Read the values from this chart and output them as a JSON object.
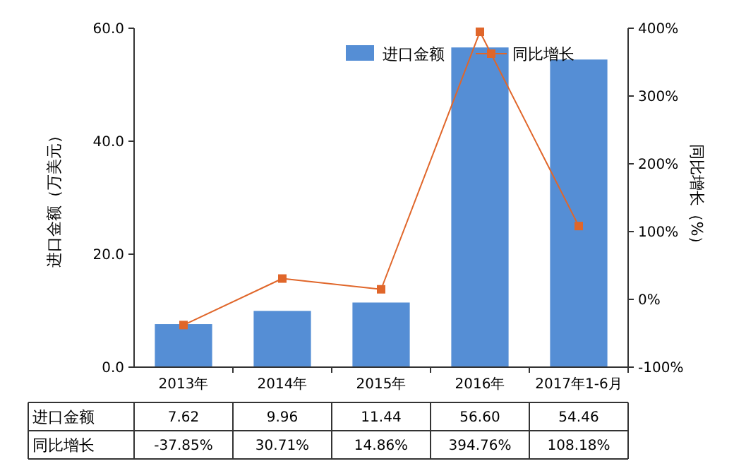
{
  "chart_data": {
    "type": "bar",
    "categories": [
      "2013年",
      "2014年",
      "2015年",
      "2016年",
      "2017年1-6月"
    ],
    "ylabel": "进口金额（万美元）",
    "y2label": "同比增长（%）",
    "ylim": [
      0,
      60
    ],
    "yticks": [
      {
        "value": 0,
        "label": "0.0"
      },
      {
        "value": 20,
        "label": "20.0"
      },
      {
        "value": 40,
        "label": "40.0"
      },
      {
        "value": 60,
        "label": "60.0"
      }
    ],
    "y2lim": [
      -100,
      400
    ],
    "y2ticks": [
      {
        "value": -100,
        "label": "-100%"
      },
      {
        "value": 0,
        "label": "0%"
      },
      {
        "value": 100,
        "label": "100%"
      },
      {
        "value": 200,
        "label": "200%"
      },
      {
        "value": 300,
        "label": "300%"
      },
      {
        "value": 400,
        "label": "400%"
      }
    ],
    "legend": "top right",
    "grid": false,
    "series": [
      {
        "name": "进口金额",
        "color": "#558ed5",
        "values": [
          7.62,
          9.96,
          11.44,
          56.6,
          54.46
        ],
        "value_labels": [
          "7.62",
          "9.96",
          "11.44",
          "56.60",
          "54.46"
        ]
      },
      {
        "name": "同比增长",
        "type": "line",
        "axis": "y2",
        "color": "#e0662a",
        "marker": "square",
        "values": [
          -37.85,
          30.71,
          14.86,
          394.76,
          108.18
        ],
        "value_labels": [
          "-37.85%",
          "30.71%",
          "14.86%",
          "394.76%",
          "108.18%"
        ]
      }
    ]
  }
}
